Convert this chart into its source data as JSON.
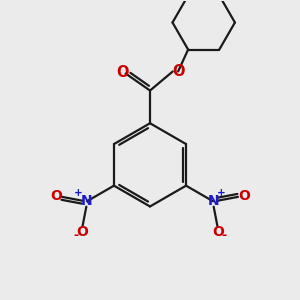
{
  "bg_color": "#ebebeb",
  "bond_color": "#1a1a1a",
  "oxygen_color": "#cc0000",
  "nitrogen_color": "#1a1acc",
  "line_width": 1.6,
  "figsize": [
    3.0,
    3.0
  ],
  "dpi": 100,
  "xlim": [
    0,
    10
  ],
  "ylim": [
    0,
    10
  ]
}
